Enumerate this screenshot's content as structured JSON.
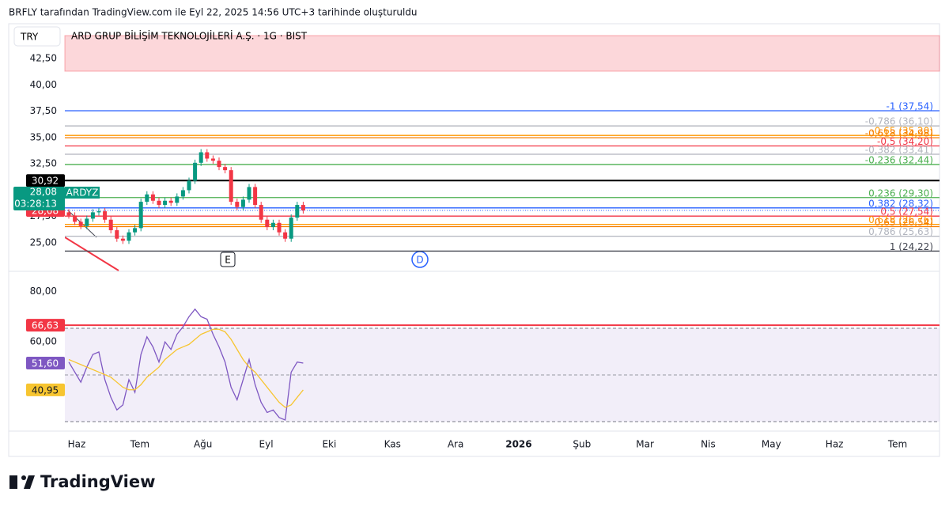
{
  "header": {
    "caption": "BRFLY tarafından TradingView.com ile Eyl 22, 2025 14:56 UTC+3 tarihinde oluşturuldu"
  },
  "toolbar": {
    "currency": "TRY",
    "symbol_title": "ARD GRUP BİLİŞİM TEKNOLOJİLERİ A.Ş. · 1G · BIST"
  },
  "markers": {
    "earnings": "E",
    "dividend": "D"
  },
  "time_axis": [
    "Haz",
    "Tem",
    "Ağu",
    "Eyl",
    "Eki",
    "Kas",
    "Ara",
    "2026",
    "Şub",
    "Mar",
    "Nis",
    "May",
    "Haz",
    "Tem"
  ],
  "logo": "TradingView",
  "chart_data": [
    {
      "type": "candlestick",
      "up_color": "#089981",
      "down_color": "#f23645",
      "open": [
        27.9,
        27.6,
        27.0,
        26.6,
        27.3,
        27.9,
        28.0,
        27.2,
        26.2,
        25.4,
        25.2,
        26.0,
        26.4,
        28.9,
        29.6,
        29.0,
        28.6,
        29.0,
        28.8,
        29.4,
        30.0,
        30.9,
        32.6,
        33.6,
        33.0,
        32.8,
        32.2,
        31.9,
        28.9,
        28.4,
        29.1,
        30.3,
        28.6,
        27.2,
        26.5,
        26.9,
        26.0,
        25.4,
        27.4,
        28.6
      ],
      "high": [
        28.2,
        27.9,
        27.3,
        27.6,
        28.2,
        28.3,
        28.3,
        27.5,
        26.5,
        25.7,
        26.3,
        26.7,
        29.2,
        29.9,
        29.9,
        29.3,
        29.3,
        29.3,
        29.7,
        30.3,
        31.2,
        32.9,
        33.9,
        33.9,
        33.3,
        33.1,
        32.5,
        32.2,
        29.2,
        29.4,
        30.6,
        30.6,
        28.9,
        27.5,
        27.2,
        27.2,
        26.3,
        27.7,
        28.9,
        28.9
      ],
      "low": [
        27.3,
        26.7,
        26.3,
        26.3,
        27.0,
        27.6,
        26.9,
        25.9,
        25.1,
        24.9,
        24.9,
        25.7,
        26.1,
        28.6,
        28.7,
        28.3,
        28.3,
        28.5,
        28.5,
        29.1,
        29.7,
        30.6,
        32.3,
        32.7,
        32.5,
        31.9,
        31.6,
        28.6,
        28.1,
        28.1,
        28.8,
        28.3,
        26.9,
        26.2,
        26.2,
        25.7,
        25.1,
        25.1,
        27.1,
        27.78
      ],
      "close": [
        27.6,
        27.0,
        26.6,
        27.3,
        27.9,
        28.0,
        27.2,
        26.2,
        25.4,
        25.2,
        26.0,
        26.4,
        28.9,
        29.6,
        29.0,
        28.6,
        29.0,
        28.8,
        29.4,
        30.0,
        30.9,
        32.6,
        33.6,
        33.0,
        32.8,
        32.2,
        31.9,
        28.9,
        28.4,
        29.1,
        30.3,
        28.6,
        27.2,
        26.5,
        26.9,
        26.0,
        25.4,
        27.4,
        28.6,
        28.08
      ],
      "ylim": [
        22.3,
        45.8
      ],
      "yticks": [
        {
          "value": 25,
          "label": "25,00"
        },
        {
          "value": 27.5,
          "label": "27,50"
        },
        {
          "value": 30,
          "label": "30,00"
        },
        {
          "value": 32.5,
          "label": "32,50"
        },
        {
          "value": 35,
          "label": "35,00"
        },
        {
          "value": 37.5,
          "label": "37,50"
        },
        {
          "value": 40,
          "label": "40,00"
        },
        {
          "value": 42.5,
          "label": "42,50"
        }
      ],
      "fib": {
        "values": [
          37.54,
          36.1,
          35.2,
          34.98,
          34.2,
          33.41,
          32.44,
          30.92,
          29.3,
          28.32,
          27.54,
          26.76,
          26.54,
          25.63,
          24.22
        ],
        "labels": [
          "-1 (37,54)",
          "-0,786 (36,10)",
          "-0,65 (35,20)",
          "-0,618 (34,98)",
          "-0,5 (34,20)",
          "-0,382 (33,41)",
          "-0,236 (32,44)",
          null,
          "0,236 (29,30)",
          "0,382 (28,32)",
          "0,5 (27,54)",
          "0,618 (26,76)",
          "0,65 (26,54)",
          "0,786 (25,63)",
          "1 (24,22)"
        ],
        "colors": [
          "#2962ff",
          "#b2b5be",
          "#ff9800",
          "#f57c00",
          "#f23645",
          "#b2b5be",
          "#4caf50",
          "#000000",
          "#4caf50",
          "#2962ff",
          "#f23645",
          "#ff9800",
          "#f57c00",
          "#b2b5be",
          "#434651"
        ]
      },
      "badges": [
        {
          "value": 30.92,
          "label": "30,92",
          "color": "#000000"
        },
        {
          "value": 28.08,
          "label": "28,08",
          "color": "#f23645"
        }
      ],
      "last": {
        "value": 28.08,
        "label": "28,08",
        "symbol": "ARDYZ",
        "countdown": "03:28:13",
        "color": "#089981"
      }
    },
    {
      "type": "line",
      "series": [
        {
          "name": "RSI",
          "color": "#7e57c2",
          "values": [
            52,
            48,
            44,
            50,
            55,
            56,
            45,
            38,
            33,
            35,
            45,
            40,
            55,
            62,
            58,
            52,
            60,
            57,
            63,
            66,
            70,
            73,
            70,
            69,
            63,
            58,
            52,
            42,
            37,
            45,
            53,
            43,
            36,
            32,
            33,
            30,
            29,
            48,
            52,
            51.6
          ]
        },
        {
          "name": "RSI MA",
          "color": "#f7c530",
          "values": [
            53,
            52,
            51,
            50,
            49,
            48,
            47,
            46,
            44,
            42,
            41,
            41,
            43,
            46,
            48,
            50,
            53,
            55,
            57,
            58,
            59,
            61,
            63,
            64,
            65,
            65,
            64,
            61,
            57,
            53,
            50,
            48,
            45,
            42,
            39,
            36,
            34,
            35,
            38,
            40.95
          ]
        }
      ],
      "ylim": [
        24.6,
        88
      ],
      "yticks": [
        {
          "value": 60,
          "label": "60,00"
        },
        {
          "value": 80,
          "label": "80,00"
        }
      ],
      "badges": [
        {
          "value": 66.63,
          "label": "66,63",
          "color": "#f23645"
        },
        {
          "value": 51.6,
          "label": "51,60",
          "color": "#7e57c2"
        },
        {
          "value": 40.95,
          "label": "40,95",
          "color": "#f7c530"
        }
      ]
    }
  ]
}
